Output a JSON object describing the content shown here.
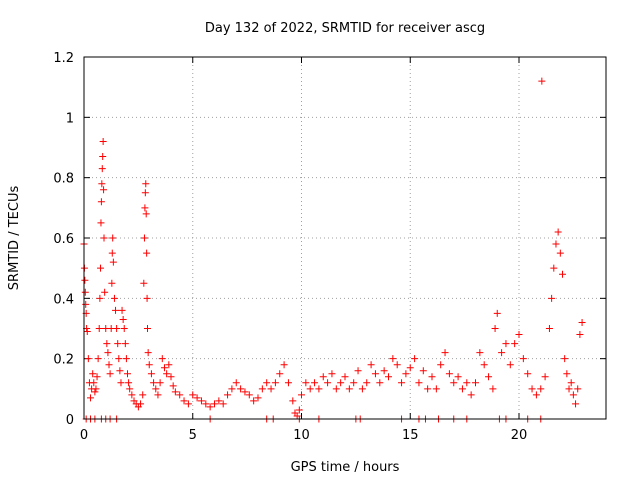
{
  "chart_data": {
    "type": "scatter",
    "title": "Day 132 of 2022, SRMTID for receiver ascg",
    "xlabel": "GPS time / hours",
    "ylabel": "SRMTID / TECUs",
    "xlim": [
      0,
      24
    ],
    "ylim": [
      0,
      1.2
    ],
    "x_ticks": [
      0,
      5,
      10,
      15,
      20
    ],
    "y_ticks": [
      0,
      0.2,
      0.4,
      0.6,
      0.8,
      1,
      1.2
    ],
    "x_tick_labels": [
      "0",
      "5",
      "10",
      "15",
      "20"
    ],
    "y_tick_labels": [
      "0",
      "0.2",
      "0.4",
      "0.6",
      "0.8",
      "1",
      "1.2"
    ],
    "grid": true,
    "marker": "+",
    "color": "#ff0000",
    "series": [
      {
        "name": "SRMTID",
        "points": [
          [
            0.0,
            0.58
          ],
          [
            0.02,
            0.5
          ],
          [
            0.04,
            0.46
          ],
          [
            0.06,
            0.42
          ],
          [
            0.08,
            0.38
          ],
          [
            0.1,
            0.35
          ],
          [
            0.12,
            0.3
          ],
          [
            0.15,
            0.29
          ],
          [
            0.2,
            0.2
          ],
          [
            0.25,
            0.12
          ],
          [
            0.3,
            0.07
          ],
          [
            0.35,
            0.1
          ],
          [
            0.4,
            0.15
          ],
          [
            0.45,
            0.12
          ],
          [
            0.5,
            0.09
          ],
          [
            0.55,
            0.1
          ],
          [
            0.6,
            0.14
          ],
          [
            0.65,
            0.2
          ],
          [
            0.7,
            0.3
          ],
          [
            0.73,
            0.4
          ],
          [
            0.76,
            0.5
          ],
          [
            0.78,
            0.65
          ],
          [
            0.8,
            0.72
          ],
          [
            0.82,
            0.78
          ],
          [
            0.84,
            0.83
          ],
          [
            0.86,
            0.87
          ],
          [
            0.88,
            0.92
          ],
          [
            0.9,
            0.76
          ],
          [
            0.92,
            0.6
          ],
          [
            0.95,
            0.42
          ],
          [
            1.0,
            0.3
          ],
          [
            1.05,
            0.25
          ],
          [
            1.1,
            0.22
          ],
          [
            1.15,
            0.18
          ],
          [
            1.2,
            0.15
          ],
          [
            1.25,
            0.3
          ],
          [
            1.28,
            0.45
          ],
          [
            1.3,
            0.55
          ],
          [
            1.32,
            0.6
          ],
          [
            1.35,
            0.52
          ],
          [
            1.4,
            0.4
          ],
          [
            1.45,
            0.36
          ],
          [
            1.5,
            0.3
          ],
          [
            1.55,
            0.25
          ],
          [
            1.6,
            0.2
          ],
          [
            1.65,
            0.16
          ],
          [
            1.7,
            0.12
          ],
          [
            1.75,
            0.36
          ],
          [
            1.8,
            0.33
          ],
          [
            1.85,
            0.3
          ],
          [
            1.9,
            0.25
          ],
          [
            1.95,
            0.2
          ],
          [
            2.0,
            0.15
          ],
          [
            2.05,
            0.12
          ],
          [
            2.1,
            0.1
          ],
          [
            2.2,
            0.08
          ],
          [
            2.3,
            0.06
          ],
          [
            2.4,
            0.05
          ],
          [
            2.5,
            0.04
          ],
          [
            2.6,
            0.05
          ],
          [
            2.7,
            0.08
          ],
          [
            2.75,
            0.45
          ],
          [
            2.78,
            0.6
          ],
          [
            2.8,
            0.7
          ],
          [
            2.82,
            0.75
          ],
          [
            2.84,
            0.78
          ],
          [
            2.86,
            0.68
          ],
          [
            2.88,
            0.55
          ],
          [
            2.9,
            0.4
          ],
          [
            2.92,
            0.3
          ],
          [
            2.95,
            0.22
          ],
          [
            3.0,
            0.18
          ],
          [
            3.1,
            0.15
          ],
          [
            3.2,
            0.12
          ],
          [
            3.3,
            0.1
          ],
          [
            3.4,
            0.08
          ],
          [
            3.5,
            0.12
          ],
          [
            3.6,
            0.2
          ],
          [
            3.7,
            0.17
          ],
          [
            3.8,
            0.15
          ],
          [
            3.9,
            0.18
          ],
          [
            4.0,
            0.14
          ],
          [
            4.1,
            0.11
          ],
          [
            4.2,
            0.09
          ],
          [
            4.4,
            0.08
          ],
          [
            4.6,
            0.06
          ],
          [
            4.8,
            0.05
          ],
          [
            5.0,
            0.08
          ],
          [
            5.2,
            0.07
          ],
          [
            5.4,
            0.06
          ],
          [
            5.6,
            0.05
          ],
          [
            5.8,
            0.04
          ],
          [
            6.0,
            0.05
          ],
          [
            6.2,
            0.06
          ],
          [
            6.4,
            0.05
          ],
          [
            6.6,
            0.08
          ],
          [
            6.8,
            0.1
          ],
          [
            7.0,
            0.12
          ],
          [
            7.2,
            0.1
          ],
          [
            7.4,
            0.09
          ],
          [
            7.6,
            0.08
          ],
          [
            7.8,
            0.06
          ],
          [
            8.0,
            0.07
          ],
          [
            8.2,
            0.1
          ],
          [
            8.4,
            0.12
          ],
          [
            8.6,
            0.1
          ],
          [
            8.8,
            0.12
          ],
          [
            9.0,
            0.15
          ],
          [
            9.2,
            0.18
          ],
          [
            9.4,
            0.12
          ],
          [
            9.6,
            0.06
          ],
          [
            9.7,
            0.02
          ],
          [
            9.8,
            0.01
          ],
          [
            9.9,
            0.03
          ],
          [
            10.0,
            0.08
          ],
          [
            10.2,
            0.12
          ],
          [
            10.4,
            0.1
          ],
          [
            10.6,
            0.12
          ],
          [
            10.8,
            0.1
          ],
          [
            11.0,
            0.14
          ],
          [
            11.2,
            0.12
          ],
          [
            11.4,
            0.15
          ],
          [
            11.6,
            0.1
          ],
          [
            11.8,
            0.12
          ],
          [
            12.0,
            0.14
          ],
          [
            12.2,
            0.1
          ],
          [
            12.4,
            0.12
          ],
          [
            12.6,
            0.16
          ],
          [
            12.8,
            0.1
          ],
          [
            13.0,
            0.12
          ],
          [
            13.2,
            0.18
          ],
          [
            13.4,
            0.15
          ],
          [
            13.6,
            0.12
          ],
          [
            13.8,
            0.16
          ],
          [
            14.0,
            0.14
          ],
          [
            14.2,
            0.2
          ],
          [
            14.4,
            0.18
          ],
          [
            14.6,
            0.12
          ],
          [
            14.8,
            0.15
          ],
          [
            15.0,
            0.17
          ],
          [
            15.2,
            0.2
          ],
          [
            15.4,
            0.12
          ],
          [
            15.6,
            0.16
          ],
          [
            15.8,
            0.1
          ],
          [
            16.0,
            0.14
          ],
          [
            16.2,
            0.1
          ],
          [
            16.4,
            0.18
          ],
          [
            16.6,
            0.22
          ],
          [
            16.8,
            0.15
          ],
          [
            17.0,
            0.12
          ],
          [
            17.2,
            0.14
          ],
          [
            17.4,
            0.1
          ],
          [
            17.6,
            0.12
          ],
          [
            17.8,
            0.08
          ],
          [
            18.0,
            0.12
          ],
          [
            18.2,
            0.22
          ],
          [
            18.4,
            0.18
          ],
          [
            18.6,
            0.14
          ],
          [
            18.8,
            0.1
          ],
          [
            18.9,
            0.3
          ],
          [
            19.0,
            0.35
          ],
          [
            19.2,
            0.22
          ],
          [
            19.4,
            0.25
          ],
          [
            19.6,
            0.18
          ],
          [
            19.8,
            0.25
          ],
          [
            20.0,
            0.28
          ],
          [
            20.2,
            0.2
          ],
          [
            20.4,
            0.15
          ],
          [
            20.6,
            0.1
          ],
          [
            20.8,
            0.08
          ],
          [
            21.0,
            0.1
          ],
          [
            21.05,
            1.12
          ],
          [
            21.2,
            0.14
          ],
          [
            21.4,
            0.3
          ],
          [
            21.5,
            0.4
          ],
          [
            21.6,
            0.5
          ],
          [
            21.7,
            0.58
          ],
          [
            21.8,
            0.62
          ],
          [
            21.9,
            0.55
          ],
          [
            22.0,
            0.48
          ],
          [
            22.1,
            0.2
          ],
          [
            22.2,
            0.15
          ],
          [
            22.3,
            0.1
          ],
          [
            22.4,
            0.12
          ],
          [
            22.5,
            0.08
          ],
          [
            22.6,
            0.05
          ],
          [
            22.7,
            0.1
          ],
          [
            22.8,
            0.28
          ],
          [
            22.9,
            0.32
          ]
        ]
      }
    ],
    "zero_points_x": [
      0.1,
      0.3,
      0.5,
      0.8,
      1.0,
      1.2,
      1.5,
      5.8,
      8.4,
      8.7,
      9.9,
      10.8,
      12.5,
      12.7,
      14.6,
      15.4,
      15.7,
      16.3,
      17.0,
      17.6,
      19.1,
      19.4,
      20.4,
      21.0
    ]
  }
}
